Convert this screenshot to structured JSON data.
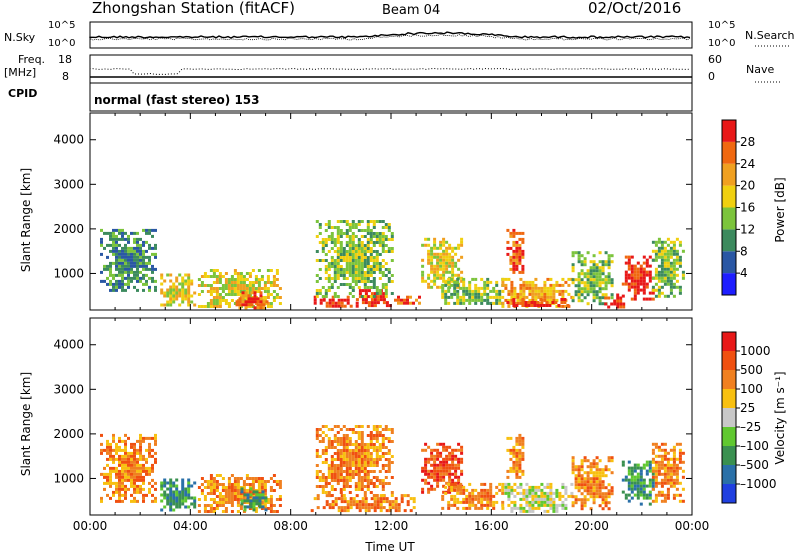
{
  "header": {
    "station": "Zhongshan Station (fitACF)",
    "beam": "Beam 04",
    "date": "02/Oct/2016"
  },
  "summary_panels": {
    "nsky_label": "N.Sky",
    "nsearch_label": "N.Search",
    "nsky_ticks": [
      "10^5",
      "10^0"
    ],
    "nsearch_ticks": [
      "10^5",
      "10^0"
    ],
    "freq_label": "Freq.",
    "freq_unit": "[MHz]",
    "freq_ticks": [
      "18",
      "8"
    ],
    "nave_label": "Nave",
    "nave_ticks": [
      "60",
      "0"
    ],
    "cpid_label": "CPID",
    "cpid_text": "normal (fast stereo) 153"
  },
  "chart_data": [
    {
      "type": "heatmap",
      "quantity": "power",
      "ylabel": "Slant Range [km]",
      "ylim": [
        180,
        4600
      ],
      "yticks": [
        1000,
        2000,
        3000,
        4000
      ],
      "xlim": [
        0,
        24
      ],
      "colorbar_label": "Power [dB]",
      "colorbar_ticks": [
        "4",
        "8",
        "12",
        "16",
        "20",
        "24",
        "28"
      ],
      "colorbar_colors": [
        "#1e1eff",
        "#2a57a4",
        "#3c8a5e",
        "#7cc43c",
        "#f0d010",
        "#f0a020",
        "#f06810",
        "#e81818"
      ],
      "blobs": [
        {
          "t0": 0.4,
          "t1": 2.6,
          "r0": 600,
          "r1": 2000,
          "level": 2
        },
        {
          "t0": 2.8,
          "t1": 4.2,
          "r0": 300,
          "r1": 1000,
          "level": 4
        },
        {
          "t0": 4.3,
          "t1": 7.6,
          "r0": 250,
          "r1": 1100,
          "level": 4
        },
        {
          "t0": 5.8,
          "t1": 7.0,
          "r0": 250,
          "r1": 600,
          "level": 6
        },
        {
          "t0": 8.8,
          "t1": 10.6,
          "r0": 250,
          "r1": 500,
          "level": 7
        },
        {
          "t0": 10.6,
          "t1": 12.0,
          "r0": 250,
          "r1": 650,
          "level": 7
        },
        {
          "t0": 12.0,
          "t1": 13.1,
          "r0": 300,
          "r1": 500,
          "level": 6
        },
        {
          "t0": 9.0,
          "t1": 12.0,
          "r0": 500,
          "r1": 2200,
          "level": 3
        },
        {
          "t0": 13.2,
          "t1": 14.8,
          "r0": 700,
          "r1": 1800,
          "level": 4
        },
        {
          "t0": 14.0,
          "t1": 16.5,
          "r0": 300,
          "r1": 900,
          "level": 3
        },
        {
          "t0": 16.4,
          "t1": 19.2,
          "r0": 250,
          "r1": 900,
          "level": 5
        },
        {
          "t0": 16.6,
          "t1": 19.0,
          "r0": 250,
          "r1": 450,
          "level": 7
        },
        {
          "t0": 16.6,
          "t1": 17.3,
          "r0": 1000,
          "r1": 2000,
          "level": 6
        },
        {
          "t0": 19.2,
          "t1": 20.8,
          "r0": 300,
          "r1": 1500,
          "level": 3
        },
        {
          "t0": 20.5,
          "t1": 21.3,
          "r0": 250,
          "r1": 550,
          "level": 7
        },
        {
          "t0": 21.2,
          "t1": 22.4,
          "r0": 450,
          "r1": 1400,
          "level": 7
        },
        {
          "t0": 22.4,
          "t1": 23.6,
          "r0": 500,
          "r1": 1800,
          "level": 3
        }
      ]
    },
    {
      "type": "heatmap",
      "quantity": "velocity",
      "ylabel": "Slant Range [km]",
      "ylim": [
        180,
        4600
      ],
      "yticks": [
        1000,
        2000,
        3000,
        4000
      ],
      "xlim": [
        0,
        24
      ],
      "xticks": [
        "00:00",
        "04:00",
        "08:00",
        "12:00",
        "16:00",
        "20:00",
        "00:00"
      ],
      "xlabel": "Time UT",
      "colorbar_label": "Velocity [m s⁻¹]",
      "colorbar_ticks": [
        "1000",
        "500",
        "100",
        "25",
        "–25",
        "–100",
        "–500",
        "–1000"
      ],
      "colorbar_colors": [
        "#2040e0",
        "#2a70a8",
        "#3a9050",
        "#60c830",
        "#c8c8c8",
        "#f8c010",
        "#f08020",
        "#f05010",
        "#e81818"
      ],
      "blobs": [
        {
          "t0": 0.4,
          "t1": 2.6,
          "r0": 500,
          "r1": 2000,
          "level": 6
        },
        {
          "t0": 2.8,
          "t1": 4.2,
          "r0": 300,
          "r1": 1000,
          "level": 2
        },
        {
          "t0": 4.3,
          "t1": 7.6,
          "r0": 250,
          "r1": 1100,
          "level": 6
        },
        {
          "t0": 6.0,
          "t1": 7.0,
          "r0": 300,
          "r1": 800,
          "level": 2
        },
        {
          "t0": 8.8,
          "t1": 13.1,
          "r0": 250,
          "r1": 650,
          "level": 6
        },
        {
          "t0": 9.0,
          "t1": 12.0,
          "r0": 650,
          "r1": 2200,
          "level": 6
        },
        {
          "t0": 13.2,
          "t1": 14.8,
          "r0": 700,
          "r1": 1800,
          "level": 7
        },
        {
          "t0": 14.0,
          "t1": 16.5,
          "r0": 300,
          "r1": 900,
          "level": 6
        },
        {
          "t0": 16.4,
          "t1": 19.2,
          "r0": 250,
          "r1": 900,
          "level": 4
        },
        {
          "t0": 16.6,
          "t1": 17.3,
          "r0": 1000,
          "r1": 2000,
          "level": 6
        },
        {
          "t0": 19.2,
          "t1": 20.8,
          "r0": 300,
          "r1": 1500,
          "level": 6
        },
        {
          "t0": 21.2,
          "t1": 22.4,
          "r0": 450,
          "r1": 1400,
          "level": 2
        },
        {
          "t0": 22.4,
          "t1": 23.6,
          "r0": 500,
          "r1": 1800,
          "level": 6
        }
      ]
    }
  ]
}
